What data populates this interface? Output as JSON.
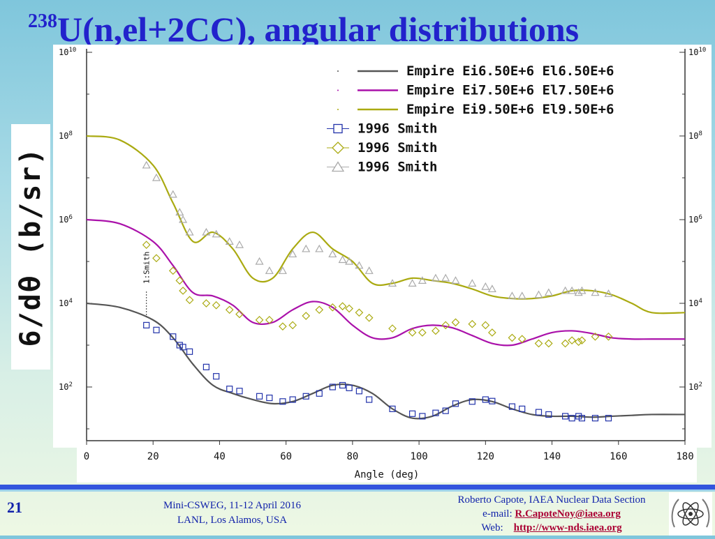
{
  "slide": {
    "title_sup": "238",
    "title_main": "U(n,el+2CC), angular distributions",
    "ylabel": "6/dθ (b/sr)",
    "page_number": "21",
    "conference_line1": "Mini-CSWEG, 11-12 April 2016",
    "conference_line2": "LANL, Los Alamos, USA",
    "author_line": "Roberto Capote, IAEA Nuclear Data Section",
    "email_prefix": "e-mail: ",
    "email": "R.CapoteNoy@iaea.org",
    "web_prefix": "Web: ",
    "web": "http://www-nds.iaea.org",
    "logo": "iaea-atom-logo",
    "colors": {
      "title": "#2222cc",
      "footer_text": "#1122aa",
      "link": "#aa0033",
      "footer_bar": "#3355dd"
    }
  },
  "chart_data": {
    "type": "line",
    "xlabel": "Angle (deg)",
    "ylabel": "6/dθ (b/sr)",
    "xlim": [
      0,
      180
    ],
    "ylim_log10": [
      0,
      10
    ],
    "x_ticks": [
      "0",
      "20",
      "40",
      "60",
      "80",
      "100",
      "120",
      "140",
      "160",
      "180"
    ],
    "y_ticks": [
      {
        "base": "10",
        "exp": "10",
        "value": 10000000000.0
      },
      {
        "base": "10",
        "exp": "8",
        "value": 100000000.0
      },
      {
        "base": "10",
        "exp": "6",
        "value": 1000000.0
      },
      {
        "base": "10",
        "exp": "4",
        "value": 10000.0
      },
      {
        "base": "10",
        "exp": "2",
        "value": 100.0
      }
    ],
    "annotation": "1:Smith",
    "annotation_x": 18,
    "series": [
      {
        "name": "Empire Ei6.50E+6 El6.50E+6",
        "kind": "line",
        "color": "#555555",
        "x": [
          0,
          10,
          20,
          26,
          32,
          38,
          44,
          50,
          56,
          62,
          68,
          74,
          80,
          86,
          92,
          98,
          104,
          110,
          116,
          122,
          128,
          134,
          140,
          146,
          152,
          158,
          164,
          170,
          180
        ],
        "y": [
          10000,
          8000,
          4000,
          1500,
          350,
          110,
          70,
          50,
          40,
          45,
          70,
          110,
          110,
          70,
          30,
          18,
          20,
          35,
          50,
          45,
          30,
          22,
          20,
          20,
          19,
          20,
          21,
          22,
          22
        ]
      },
      {
        "name": "Empire Ei7.50E+6 El7.50E+6",
        "kind": "line",
        "color": "#aa11aa",
        "x": [
          0,
          10,
          20,
          26,
          32,
          38,
          44,
          50,
          56,
          62,
          68,
          74,
          80,
          86,
          92,
          98,
          104,
          110,
          116,
          122,
          128,
          134,
          140,
          146,
          152,
          158,
          164,
          170,
          180
        ],
        "y": [
          1000000,
          800000,
          300000,
          80000,
          18000,
          15000,
          9000,
          3500,
          3500,
          7000,
          11000,
          8000,
          3000,
          1500,
          1500,
          2500,
          3000,
          2600,
          1700,
          1100,
          1000,
          1400,
          2000,
          2200,
          1900,
          1500,
          1400,
          1400,
          1400
        ]
      },
      {
        "name": "Empire Ei9.50E+6 El9.50E+6",
        "kind": "line",
        "color": "#aaaa11",
        "x": [
          0,
          10,
          20,
          26,
          32,
          38,
          44,
          50,
          56,
          62,
          68,
          74,
          80,
          86,
          92,
          98,
          104,
          110,
          116,
          122,
          128,
          134,
          140,
          146,
          152,
          158,
          164,
          170,
          180
        ],
        "y": [
          100000000,
          80000000,
          20000000,
          2500000,
          300000,
          500000,
          200000,
          40000,
          40000,
          200000,
          500000,
          200000,
          100000,
          30000,
          30000,
          40000,
          35000,
          30000,
          22000,
          15000,
          13000,
          13000,
          15000,
          20000,
          20000,
          16000,
          10000,
          6000,
          6000
        ]
      },
      {
        "name": "1996 Smith",
        "kind": "points",
        "marker": "square",
        "color": "#2233aa",
        "x": [
          18,
          21,
          26,
          28,
          29,
          31,
          36,
          39,
          43,
          46,
          52,
          55,
          59,
          62,
          66,
          70,
          74,
          77,
          79,
          82,
          85,
          92,
          98,
          101,
          105,
          108,
          111,
          116,
          120,
          122,
          128,
          131,
          136,
          139,
          144,
          146,
          148,
          149,
          153,
          157
        ],
        "y": [
          3000,
          2300,
          1600,
          1000,
          900,
          700,
          300,
          180,
          90,
          80,
          60,
          55,
          45,
          50,
          60,
          70,
          100,
          110,
          95,
          80,
          50,
          30,
          23,
          20,
          24,
          27,
          40,
          45,
          50,
          46,
          34,
          30,
          25,
          22,
          20,
          18,
          20,
          18,
          18,
          18
        ]
      },
      {
        "name": "1996 Smith",
        "kind": "points",
        "marker": "diamond",
        "color": "#aaaa11",
        "x": [
          18,
          21,
          26,
          28,
          29,
          31,
          36,
          39,
          43,
          46,
          52,
          55,
          59,
          62,
          66,
          70,
          74,
          77,
          79,
          82,
          85,
          92,
          98,
          101,
          105,
          108,
          111,
          116,
          120,
          122,
          128,
          131,
          136,
          139,
          144,
          146,
          148,
          149,
          153,
          157
        ],
        "y": [
          250000,
          120000,
          60000,
          35000,
          20000,
          12000,
          10000,
          9000,
          7000,
          5500,
          4000,
          4000,
          2800,
          3000,
          5000,
          7000,
          8000,
          8500,
          7500,
          6000,
          4500,
          2500,
          2000,
          2000,
          2200,
          3000,
          3500,
          3200,
          3000,
          2000,
          1500,
          1400,
          1100,
          1100,
          1100,
          1300,
          1200,
          1300,
          1600,
          1600
        ]
      },
      {
        "name": "1996 Smith",
        "kind": "points",
        "marker": "triangle",
        "color": "#aaaaaa",
        "x": [
          18,
          21,
          26,
          28,
          29,
          31,
          36,
          39,
          43,
          46,
          52,
          55,
          59,
          62,
          66,
          70,
          74,
          77,
          79,
          82,
          85,
          92,
          98,
          101,
          105,
          108,
          111,
          116,
          120,
          122,
          128,
          131,
          136,
          139,
          144,
          146,
          148,
          149,
          153,
          157
        ],
        "y": [
          20000000,
          10000000,
          4000000,
          1500000,
          1000000,
          500000,
          500000,
          450000,
          300000,
          250000,
          100000,
          60000,
          60000,
          150000,
          200000,
          200000,
          150000,
          110000,
          100000,
          80000,
          60000,
          30000,
          30000,
          35000,
          40000,
          40000,
          35000,
          30000,
          25000,
          22000,
          15000,
          15000,
          16000,
          18000,
          20000,
          20000,
          18000,
          20000,
          18000,
          17000
        ]
      }
    ],
    "legend": {
      "placement": "top-right"
    }
  }
}
